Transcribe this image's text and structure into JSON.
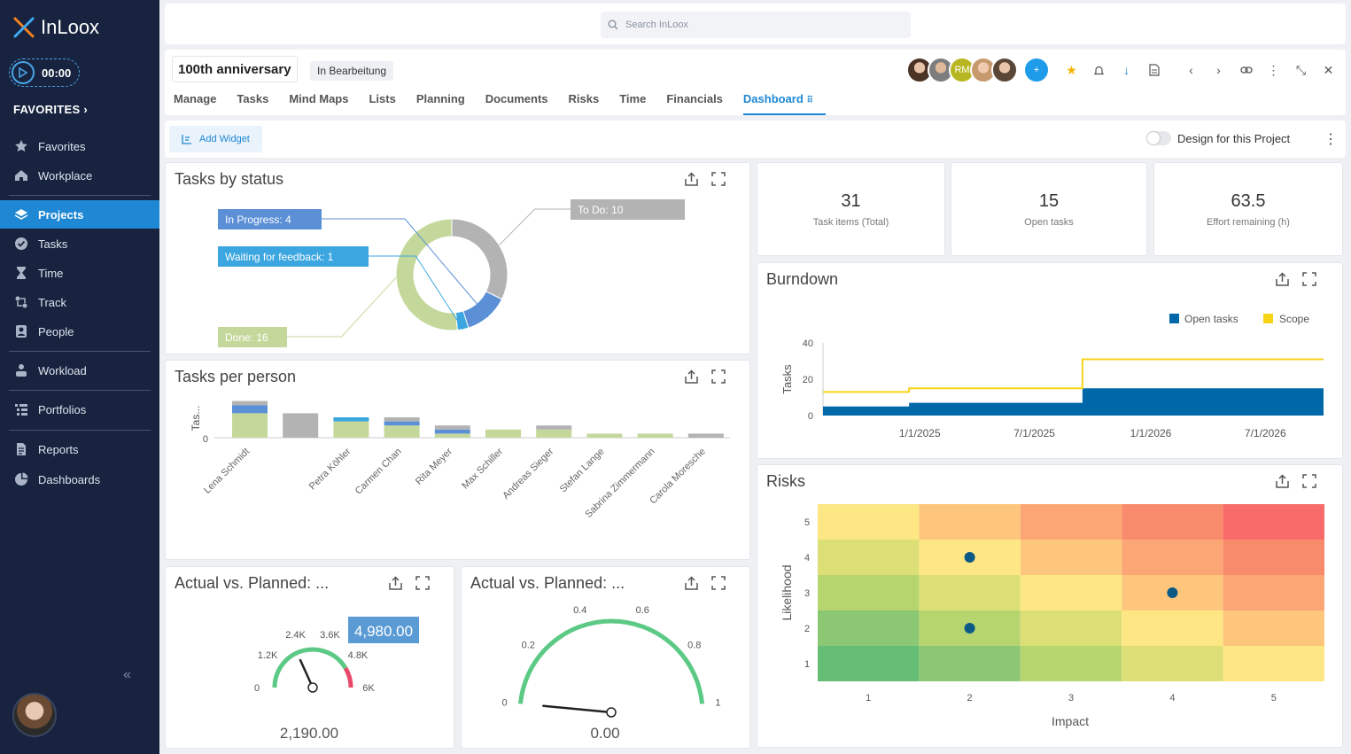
{
  "app": {
    "name": "InLoox"
  },
  "timer": {
    "value": "00:00"
  },
  "sidebar": {
    "favorites_header": "FAVORITES",
    "items": [
      {
        "label": "Favorites",
        "icon": "star-icon"
      },
      {
        "label": "Workplace",
        "icon": "home-icon"
      },
      {
        "label": "Projects",
        "icon": "layers-icon",
        "active": true
      },
      {
        "label": "Tasks",
        "icon": "check-circle-icon"
      },
      {
        "label": "Time",
        "icon": "hourglass-icon"
      },
      {
        "label": "Track",
        "icon": "track-icon"
      },
      {
        "label": "People",
        "icon": "contact-icon"
      },
      {
        "label": "Workload",
        "icon": "workload-icon"
      },
      {
        "label": "Portfolios",
        "icon": "portfolio-icon"
      },
      {
        "label": "Reports",
        "icon": "report-icon"
      },
      {
        "label": "Dashboards",
        "icon": "pie-chart-icon"
      }
    ]
  },
  "search": {
    "placeholder": "Search InLoox"
  },
  "project": {
    "title": "100th anniversary",
    "status": "In Bearbeitung",
    "member_initials": "RM",
    "tabs": [
      "Manage",
      "Tasks",
      "Mind Maps",
      "Lists",
      "Planning",
      "Documents",
      "Risks",
      "Time",
      "Financials",
      "Dashboard"
    ],
    "active_tab": "Dashboard"
  },
  "toolbar": {
    "add_widget": "Add Widget",
    "design_label": "Design for this Project"
  },
  "kpis": [
    {
      "value": "31",
      "label": "Task items (Total)"
    },
    {
      "value": "15",
      "label": "Open tasks"
    },
    {
      "value": "63.5",
      "label": "Effort remaining (h)"
    }
  ],
  "widgets": {
    "tasks_by_status": "Tasks by status",
    "tasks_per_person": "Tasks per person",
    "burndown": "Burndown",
    "risks": "Risks",
    "actual_planned_1": "Actual vs. Planned: ...",
    "actual_planned_2": "Actual vs. Planned: ..."
  },
  "colors": {
    "accent": "#1e88d4",
    "sidebar": "#17233f",
    "done": "#c5d89b",
    "in_progress": "#5b8fd6",
    "waiting": "#3ba6e0",
    "todo": "#b3b3b3",
    "open_tasks": "#0068a8",
    "scope": "#f7d317"
  },
  "chart_data": [
    {
      "type": "pie",
      "title": "Tasks by status",
      "slices": [
        {
          "label": "In Progress: 4",
          "name": "In Progress",
          "value": 4,
          "color": "#5b8fd6"
        },
        {
          "label": "Waiting for feedback: 1",
          "name": "Waiting for feedback",
          "value": 1,
          "color": "#3ba6e0"
        },
        {
          "label": "Done: 16",
          "name": "Done",
          "value": 16,
          "color": "#c5d89b"
        },
        {
          "label": "To Do: 10",
          "name": "To Do",
          "value": 10,
          "color": "#b3b3b3"
        }
      ]
    },
    {
      "type": "bar",
      "title": "Tasks per person",
      "ylabel": "Tas...",
      "y_tick": "0",
      "categories": [
        "Lena Schmidt",
        "",
        "Petra Köhler",
        "Carmen Chan",
        "Rita Meyer",
        "Max Schiller",
        "Andreas Sieger",
        "Stefan Lange",
        "Sabrina Zimmermann",
        "Carola Moresche"
      ],
      "series": [
        {
          "values": [
            6,
            0,
            4,
            3,
            1,
            2,
            2,
            1,
            1,
            0
          ],
          "color": "#c5d89b"
        },
        {
          "values": [
            2,
            0,
            0,
            1,
            1,
            0,
            0,
            0,
            0,
            0
          ],
          "color": "#5b8fd6"
        },
        {
          "values": [
            0,
            0,
            1,
            0,
            0,
            0,
            0,
            0,
            0,
            0
          ],
          "color": "#3ba6e0"
        },
        {
          "values": [
            1,
            6,
            0,
            1,
            1,
            0,
            1,
            0,
            0,
            1
          ],
          "color": "#b3b3b3"
        }
      ]
    },
    {
      "type": "area",
      "title": "Burndown",
      "ylabel": "Tasks",
      "ylim": [
        0,
        40
      ],
      "y_ticks": [
        "0",
        "20",
        "40"
      ],
      "x_ticks": [
        "1/1/2025",
        "7/1/2025",
        "1/1/2026",
        "7/1/2026"
      ],
      "legend": "top-right",
      "series": [
        {
          "name": "Open tasks",
          "color": "#0068a8",
          "points": [
            [
              "2024-08-01",
              5
            ],
            [
              "2024-12-15",
              5
            ],
            [
              "2024-12-15",
              7
            ],
            [
              "2025-09-15",
              7
            ],
            [
              "2025-09-15",
              15
            ],
            [
              "2026-10-01",
              15
            ]
          ]
        },
        {
          "name": "Scope",
          "color": "#f7d317",
          "points": [
            [
              "2024-08-01",
              13
            ],
            [
              "2024-12-15",
              13
            ],
            [
              "2024-12-15",
              15
            ],
            [
              "2025-09-15",
              15
            ],
            [
              "2025-09-15",
              31
            ],
            [
              "2026-10-01",
              31
            ]
          ]
        }
      ]
    },
    {
      "type": "heatmap",
      "title": "Risks",
      "xlabel": "Impact",
      "ylabel": "Likelihood",
      "x_ticks": [
        "1",
        "2",
        "3",
        "4",
        "5"
      ],
      "y_ticks": [
        "1",
        "2",
        "3",
        "4",
        "5"
      ],
      "points": [
        [
          2,
          4
        ],
        [
          4,
          3
        ],
        [
          2,
          2
        ]
      ]
    },
    {
      "type": "gauge",
      "title": "Actual vs. Planned: ...",
      "value": 2190,
      "value_label": "2,190.00",
      "target": 4980,
      "target_label": "4,980.00",
      "min": 0,
      "max": 6000,
      "ticks": [
        "0",
        "1.2K",
        "2.4K",
        "3.6K",
        "4.8K",
        "6K"
      ]
    },
    {
      "type": "gauge",
      "title": "Actual vs. Planned: ...",
      "value": 0,
      "value_label": "0.00",
      "min": 0,
      "max": 1,
      "ticks": [
        "0",
        "0.2",
        "0.4",
        "0.6",
        "0.8",
        "1"
      ]
    }
  ]
}
